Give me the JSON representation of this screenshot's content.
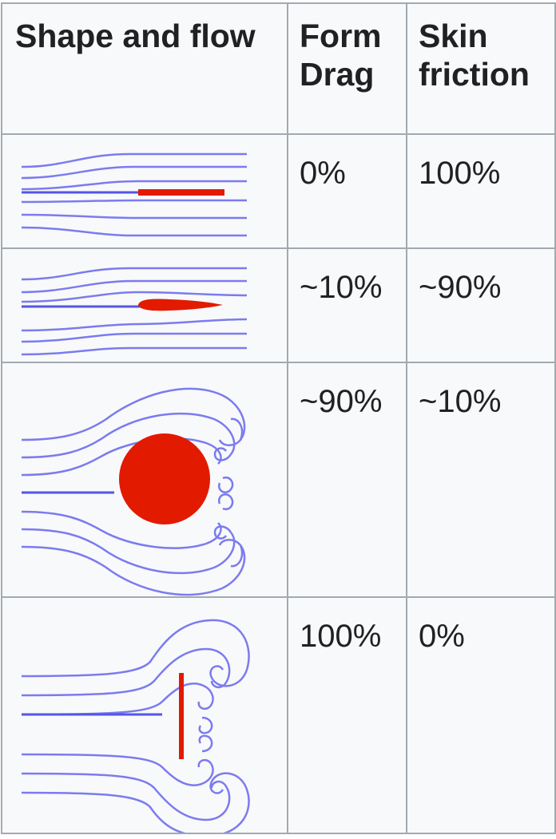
{
  "table": {
    "headers": {
      "shape": "Shape and flow",
      "form_line1": "Form",
      "form_line2": "Drag",
      "skin_line1": "Skin",
      "skin_line2": "friction"
    },
    "rows": [
      {
        "shape": "flat-plate-parallel",
        "form_drag": "0%",
        "skin_friction": "100%"
      },
      {
        "shape": "streamlined-airfoil",
        "form_drag": "~10%",
        "skin_friction": "~90%"
      },
      {
        "shape": "sphere",
        "form_drag": "~90%",
        "skin_friction": "~10%"
      },
      {
        "shape": "flat-plate-perpendicular",
        "form_drag": "100%",
        "skin_friction": "0%"
      }
    ]
  },
  "colors": {
    "streamline": "#7b7bef",
    "body": "#e21a00",
    "border": "#a2a9b1",
    "cell_bg": "#f8f9fa"
  }
}
